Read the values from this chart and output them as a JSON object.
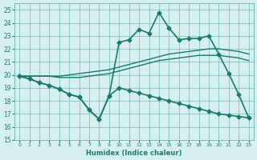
{
  "xlabel": "Humidex (Indice chaleur)",
  "background_color": "#d6f0ef",
  "grid_color": "#7ab8b8",
  "line_color": "#1a7a6e",
  "xlim": [
    -0.5,
    23.5
  ],
  "ylim": [
    15,
    25.5
  ],
  "yticks": [
    15,
    16,
    17,
    18,
    19,
    20,
    21,
    22,
    23,
    24,
    25
  ],
  "xticks": [
    0,
    1,
    2,
    3,
    4,
    5,
    6,
    7,
    8,
    9,
    10,
    11,
    12,
    13,
    14,
    15,
    16,
    17,
    18,
    19,
    20,
    21,
    22,
    23
  ],
  "series": [
    {
      "x": [
        0,
        1,
        2,
        3,
        4,
        5,
        6,
        7,
        8,
        9,
        10,
        11,
        12,
        13,
        14,
        15,
        16,
        17,
        18,
        19,
        20,
        21,
        22,
        23
      ],
      "y": [
        19.9,
        19.7,
        19.4,
        19.2,
        18.9,
        18.5,
        18.3,
        17.3,
        16.6,
        18.4,
        22.5,
        22.7,
        23.5,
        23.2,
        24.8,
        23.6,
        22.7,
        22.8,
        22.8,
        23.0,
        21.6,
        20.1,
        18.5,
        16.7
      ],
      "marker": "D",
      "markersize": 2.5,
      "linewidth": 1.2
    },
    {
      "x": [
        0,
        1,
        2,
        3,
        4,
        5,
        6,
        7,
        8,
        9,
        10,
        11,
        12,
        13,
        14,
        15,
        16,
        17,
        18,
        19,
        20,
        21,
        22,
        23
      ],
      "y": [
        19.9,
        19.9,
        19.9,
        19.9,
        19.9,
        20.0,
        20.1,
        20.2,
        20.3,
        20.4,
        20.6,
        20.8,
        21.0,
        21.2,
        21.4,
        21.6,
        21.7,
        21.8,
        21.9,
        22.0,
        22.0,
        21.9,
        21.8,
        21.6
      ],
      "marker": null,
      "linewidth": 1.0
    },
    {
      "x": [
        0,
        1,
        2,
        3,
        4,
        5,
        6,
        7,
        8,
        9,
        10,
        11,
        12,
        13,
        14,
        15,
        16,
        17,
        18,
        19,
        20,
        21,
        22,
        23
      ],
      "y": [
        19.9,
        19.9,
        19.9,
        19.9,
        19.8,
        19.8,
        19.8,
        19.9,
        20.0,
        20.1,
        20.3,
        20.5,
        20.7,
        20.9,
        21.1,
        21.2,
        21.3,
        21.4,
        21.5,
        21.5,
        21.5,
        21.4,
        21.3,
        21.1
      ],
      "marker": null,
      "linewidth": 1.0
    },
    {
      "x": [
        0,
        1,
        2,
        3,
        4,
        5,
        6,
        7,
        8,
        9,
        10,
        11,
        12,
        13,
        14,
        15,
        16,
        17,
        18,
        19,
        20,
        21,
        22,
        23
      ],
      "y": [
        19.9,
        19.7,
        19.4,
        19.2,
        18.9,
        18.5,
        18.3,
        17.3,
        16.6,
        18.4,
        19.0,
        18.8,
        18.6,
        18.4,
        18.2,
        18.0,
        17.8,
        17.6,
        17.4,
        17.2,
        17.0,
        16.9,
        16.8,
        16.7
      ],
      "marker": "D",
      "markersize": 2.5,
      "linewidth": 1.2
    }
  ]
}
